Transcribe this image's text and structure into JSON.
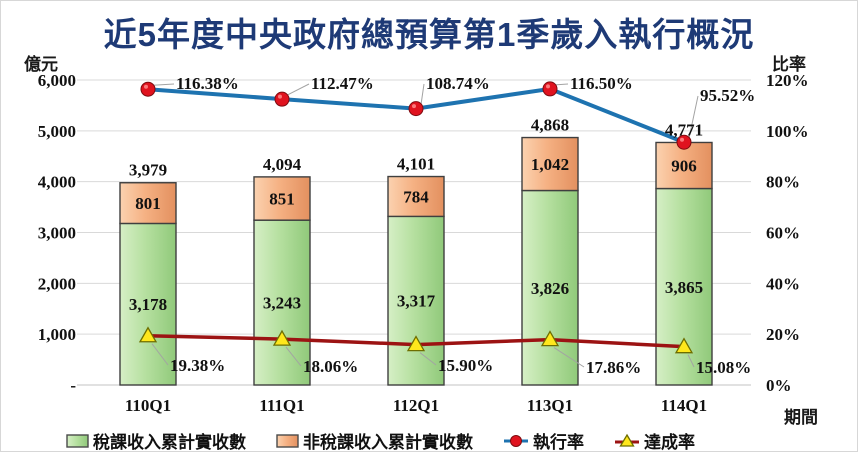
{
  "title": "近5年度中央政府總預算第1季歲入執行概況",
  "axes": {
    "left_unit": "億元",
    "right_unit": "比率",
    "x_unit": "期間",
    "left_ticks": [
      "6,000",
      "5,000",
      "4,000",
      "3,000",
      "2,000",
      "1,000",
      "-"
    ],
    "right_ticks": [
      "120%",
      "100%",
      "80%",
      "60%",
      "40%",
      "20%",
      "0%"
    ]
  },
  "chart_data": {
    "type": "bar",
    "subtype": "stacked-bars-with-two-percentage-lines",
    "title": "近5年度中央政府總預算第1季歲入執行概況",
    "categories": [
      "110Q1",
      "111Q1",
      "112Q1",
      "113Q1",
      "114Q1"
    ],
    "left_axis": {
      "label": "億元",
      "min": 0,
      "max": 6000,
      "step": 1000
    },
    "right_axis": {
      "label": "比率",
      "min": 0,
      "max": 120,
      "step": 20,
      "unit": "%"
    },
    "grid": true,
    "legend_position": "bottom",
    "series": [
      {
        "name": "稅課收入累計實收數",
        "type": "bar",
        "stack": 1,
        "axis": "left",
        "color": "#b6e0a0",
        "values": [
          3178,
          3243,
          3317,
          3826,
          3865
        ],
        "labels": [
          "3,178",
          "3,243",
          "3,317",
          "3,826",
          "3,865"
        ]
      },
      {
        "name": "非稅課收入累計實收數",
        "type": "bar",
        "stack": 2,
        "axis": "left",
        "color": "#f5b183",
        "values": [
          801,
          851,
          784,
          1042,
          906
        ],
        "labels": [
          "801",
          "851",
          "784",
          "1,042",
          "906"
        ]
      },
      {
        "name": "執行率",
        "type": "line",
        "axis": "right",
        "color": "#1e73b0",
        "marker": "circle",
        "marker_color": "#e0131f",
        "values": [
          116.38,
          112.47,
          108.74,
          116.5,
          95.52
        ],
        "labels": [
          "116.38%",
          "112.47%",
          "108.74%",
          "116.50%",
          "95.52%"
        ]
      },
      {
        "name": "達成率",
        "type": "line",
        "axis": "right",
        "color": "#9c1313",
        "marker": "triangle",
        "marker_color": "#ffe71c",
        "values": [
          19.38,
          18.06,
          15.9,
          17.86,
          15.08
        ],
        "labels": [
          "19.38%",
          "18.06%",
          "15.90%",
          "17.86%",
          "15.08%"
        ]
      }
    ],
    "stack_totals": {
      "values": [
        3979,
        4094,
        4101,
        4868,
        4771
      ],
      "labels": [
        "3,979",
        "4,094",
        "4,101",
        "4,868",
        "4,771"
      ]
    }
  }
}
